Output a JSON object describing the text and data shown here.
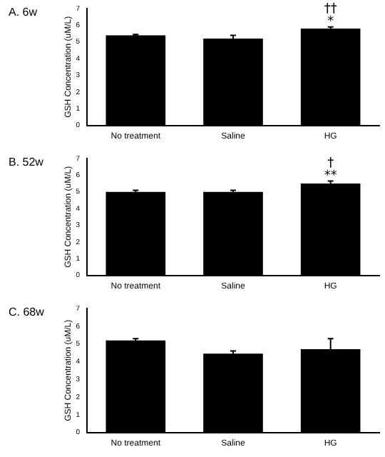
{
  "chart_data": [
    {
      "type": "bar",
      "title": "A. 6w",
      "ylabel": "GSH Concentration (uM/L)",
      "categories": [
        "No treatment",
        "Saline",
        "HG"
      ],
      "values": [
        5.4,
        5.2,
        5.8
      ],
      "errors": [
        0.05,
        0.2,
        0.1
      ],
      "color": "#000000",
      "ylim": [
        0,
        7
      ],
      "yticks": [
        0,
        1,
        2,
        3,
        4,
        5,
        6,
        7
      ],
      "grid": false,
      "legend": false,
      "annotations": [
        {
          "text": "*",
          "x": "HG",
          "y": 6.2
        },
        "††"
      ]
    },
    {
      "type": "bar",
      "title": "B. 52w",
      "ylabel": "GSH Concentration (uM/L)",
      "categories": [
        "No treatment",
        "Saline",
        "HG"
      ],
      "values": [
        5.0,
        5.0,
        5.5
      ],
      "errors": [
        0.1,
        0.1,
        0.15
      ],
      "color": "#000000",
      "ylim": [
        0,
        7
      ],
      "yticks": [
        0,
        1,
        2,
        3,
        4,
        5,
        6,
        7
      ],
      "grid": false,
      "legend": false,
      "annotations": [
        {
          "text": "**",
          "x": "HG",
          "y": 5.95
        },
        "†"
      ]
    },
    {
      "type": "bar",
      "title": "C. 68w",
      "ylabel": "GSH Concentration (uM/L)",
      "categories": [
        "No treatment",
        "Saline",
        "HG"
      ],
      "values": [
        5.2,
        4.45,
        4.7
      ],
      "errors": [
        0.1,
        0.15,
        0.6
      ],
      "color": "#000000",
      "ylim": [
        0,
        7
      ],
      "yticks": [
        0,
        1,
        2,
        3,
        4,
        5,
        6,
        7
      ],
      "grid": false,
      "legend": false
    }
  ]
}
